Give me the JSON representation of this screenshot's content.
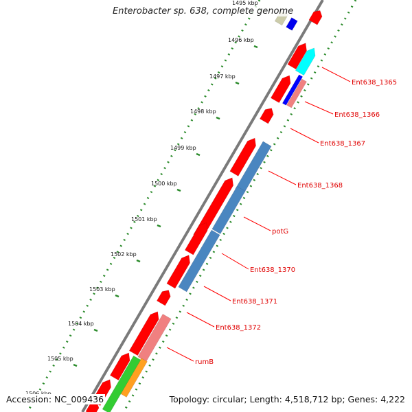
{
  "title": "Enterobacter sp. 638, complete genome",
  "accession_text": "Accession: NC_009436",
  "summary_text": "Topology: circular; Length: 4,518,712 bp; Genes: 4,222",
  "colors": {
    "backbone": "#7a7a7a",
    "forward_gene": "#ff0000",
    "reverse_gene": "#4a86c0",
    "tick": "#2a8a2a",
    "label": "#e00000",
    "leader": "#ff0000"
  },
  "ruler_labels": [
    "1495 kbp",
    "1496 kbp",
    "1497 kbp",
    "1498 kbp",
    "1499 kbp",
    "1500 kbp",
    "1501 kbp",
    "1502 kbp",
    "1503 kbp",
    "1504 kbp",
    "1505 kbp",
    "1506 kbp"
  ],
  "gene_labels": [
    "Ent638_1365",
    "Ent638_1366",
    "Ent638_1367",
    "Ent638_1368",
    "potG",
    "Ent638_1370",
    "Ent638_1371",
    "Ent638_1372",
    "rumB"
  ]
}
